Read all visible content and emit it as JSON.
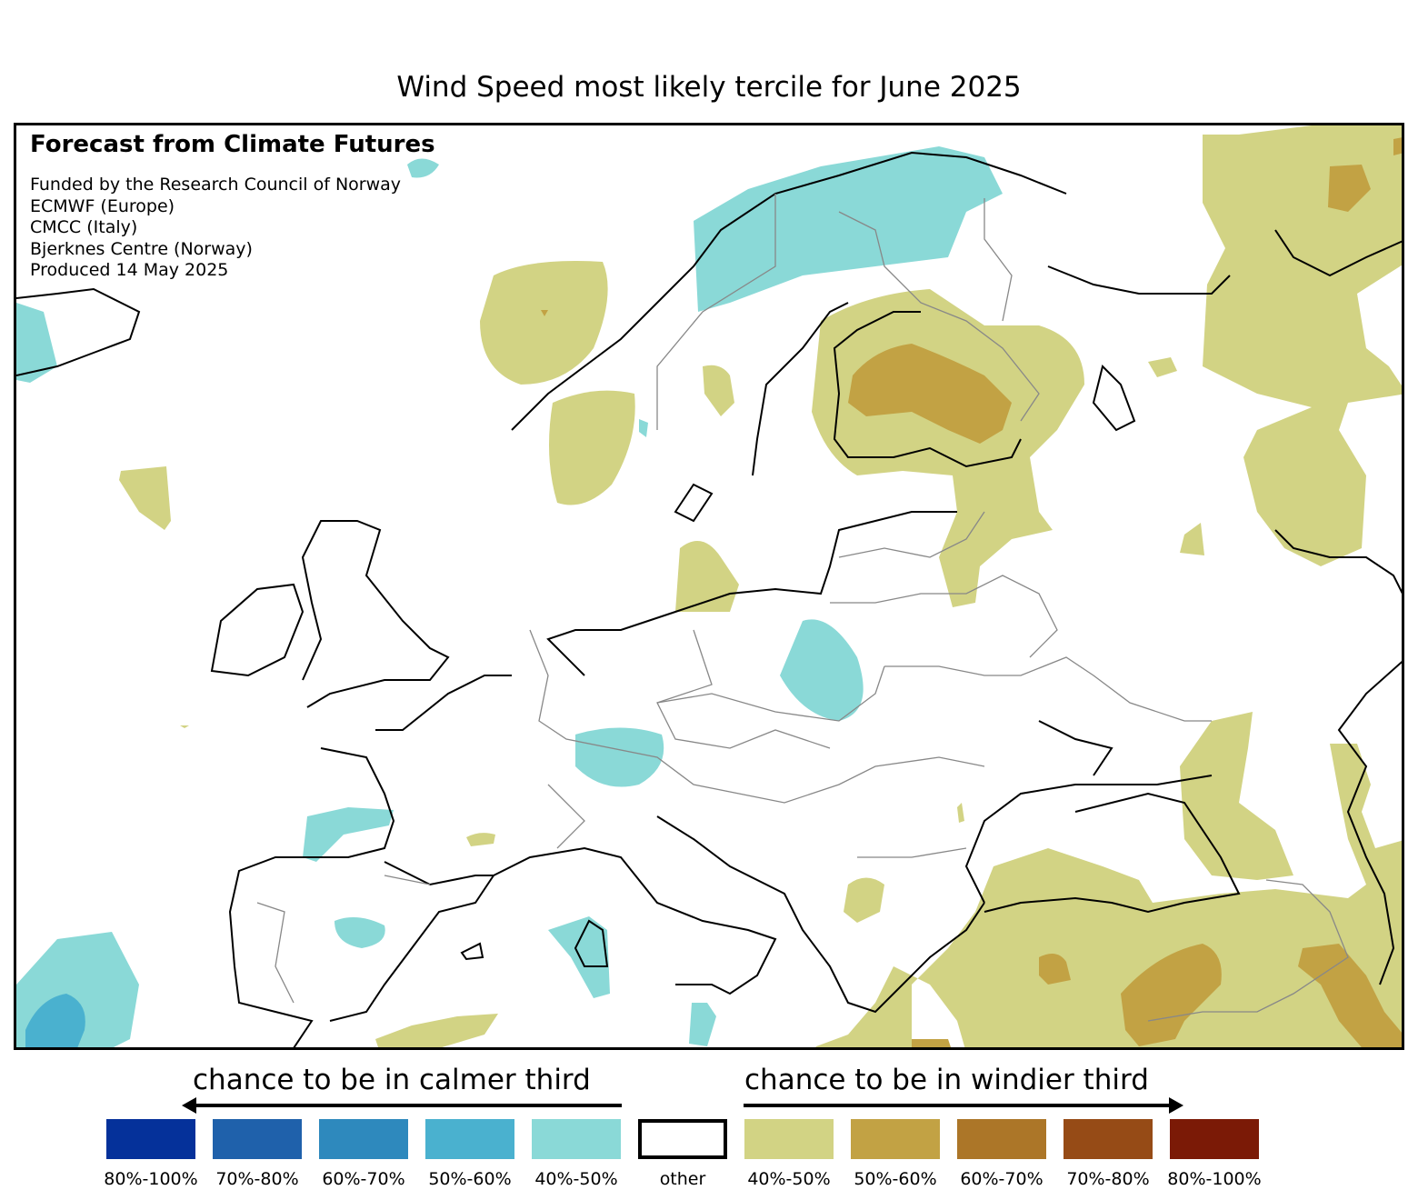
{
  "title": "Wind Speed most likely tercile for June 2025",
  "credits": {
    "heading": "Forecast from Climate Futures",
    "lines": [
      "Funded by the Research Council of Norway",
      "ECMWF (Europe)",
      "CMCC (Italy)",
      "Bjerknes Centre (Norway)",
      "Produced 14 May 2025"
    ]
  },
  "legend": {
    "calmer_label": "chance to be in calmer third",
    "windier_label": "chance to be in windier third",
    "items": [
      {
        "label": "80%-100%",
        "color": "#05319a"
      },
      {
        "label": "70%-80%",
        "color": "#1f61ab"
      },
      {
        "label": "60%-70%",
        "color": "#2e89bd"
      },
      {
        "label": "50%-60%",
        "color": "#4ab1cf"
      },
      {
        "label": "40%-50%",
        "color": "#8ad9d7"
      },
      {
        "label": "other",
        "color": "#ffffff"
      },
      {
        "label": "40%-50%",
        "color": "#d2d384"
      },
      {
        "label": "50%-60%",
        "color": "#c2a244"
      },
      {
        "label": "60%-70%",
        "color": "#ac7628"
      },
      {
        "label": "70%-80%",
        "color": "#964b16"
      },
      {
        "label": "80%-100%",
        "color": "#7b1a06"
      }
    ]
  }
}
